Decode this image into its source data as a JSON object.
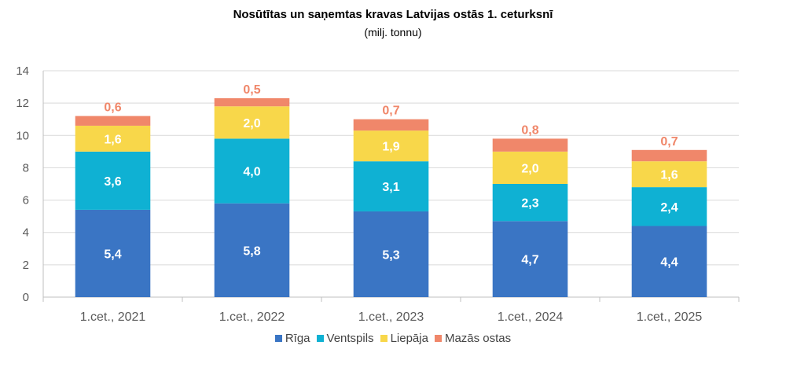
{
  "chart_data": {
    "type": "bar",
    "stacked": true,
    "title": "Nosūtītas un saņemtas kravas Latvijas ostās 1. ceturksnī",
    "subtitle": "(milj. tonnu)",
    "categories": [
      "1.cet., 2021",
      "1.cet., 2022",
      "1.cet., 2023",
      "1.cet., 2024",
      "1.cet., 2025"
    ],
    "series": [
      {
        "name": "Rīga",
        "color": "#3A75C4",
        "labelColor": "#ffffff",
        "values": [
          5.4,
          5.8,
          5.3,
          4.7,
          4.4
        ],
        "labels": [
          "5,4",
          "5,8",
          "5,3",
          "4,7",
          "4,4"
        ]
      },
      {
        "name": "Ventspils",
        "color": "#0FB1D3",
        "labelColor": "#ffffff",
        "values": [
          3.6,
          4.0,
          3.1,
          2.3,
          2.4
        ],
        "labels": [
          "3,6",
          "4,0",
          "3,1",
          "2,3",
          "2,4"
        ]
      },
      {
        "name": "Liepāja",
        "color": "#F8D74A",
        "labelColor": "#ffffff",
        "values": [
          1.6,
          2.0,
          1.9,
          2.0,
          1.6
        ],
        "labels": [
          "1,6",
          "2,0",
          "1,9",
          "2,0",
          "1,6"
        ]
      },
      {
        "name": "Mazās ostas",
        "color": "#F0876A",
        "labelColor": "#F0876A",
        "values": [
          0.6,
          0.5,
          0.7,
          0.8,
          0.7
        ],
        "labels": [
          "0,6",
          "0,5",
          "0,7",
          "0,8",
          "0,7"
        ]
      }
    ],
    "ylim": [
      0,
      14
    ],
    "yticks": [
      0,
      2,
      4,
      6,
      8,
      10,
      12,
      14
    ],
    "grid": true,
    "legend": "bottom"
  }
}
